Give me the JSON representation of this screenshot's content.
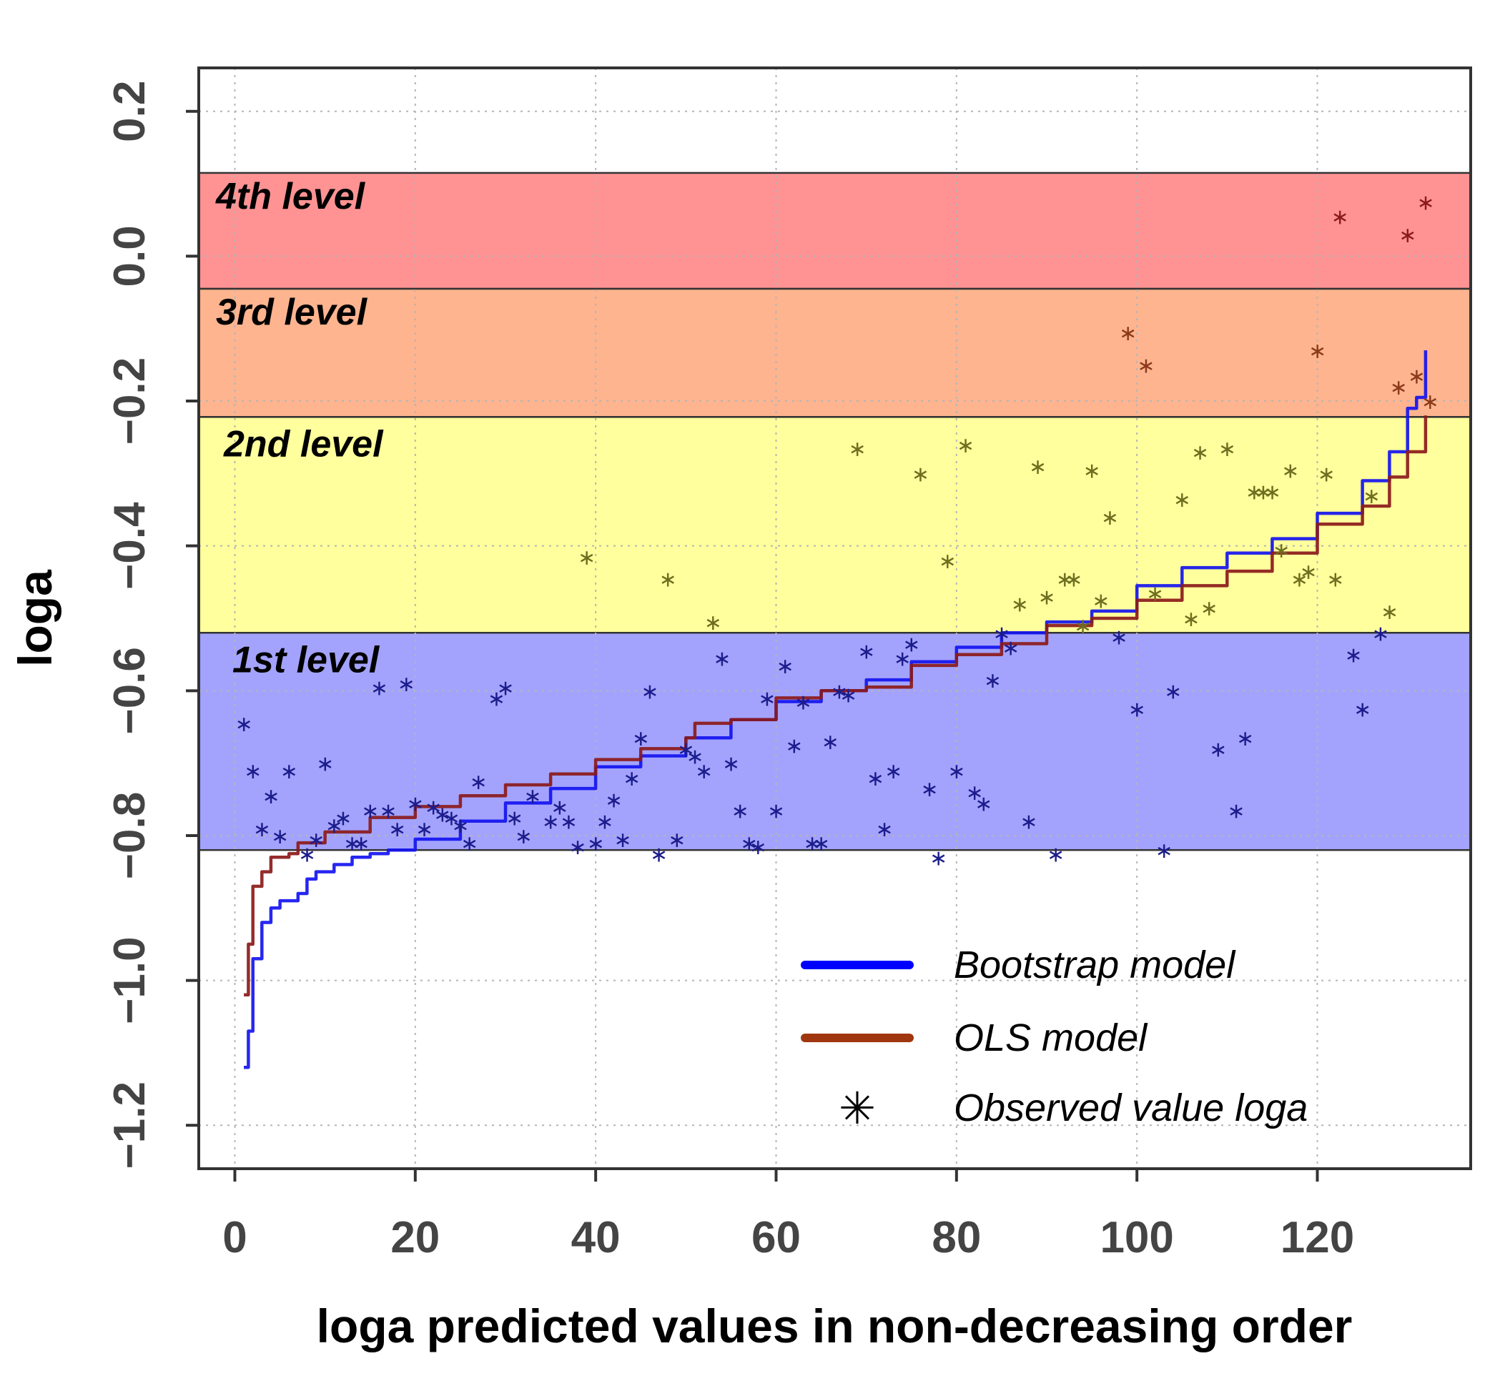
{
  "chart_data": {
    "type": "line",
    "xlabel": "loga predicted values in non-decreasing order",
    "ylabel": "loga",
    "xlim": [
      -4,
      137
    ],
    "ylim": [
      -1.26,
      0.26
    ],
    "xticks": [
      0,
      20,
      40,
      60,
      80,
      100,
      120
    ],
    "yticks": [
      -1.2,
      -1.0,
      -0.8,
      -0.6,
      -0.4,
      -0.2,
      0.0,
      0.2
    ],
    "xtick_labels": [
      "0",
      "20",
      "40",
      "60",
      "80",
      "100",
      "120"
    ],
    "ytick_labels": [
      "−1.2",
      "−1.0",
      "−0.8",
      "−0.6",
      "−0.4",
      "−0.2",
      "0.0",
      "0.2"
    ],
    "grid": true,
    "bands": [
      {
        "label": "4th level",
        "from": -0.045,
        "to": 0.115,
        "color": "#ff9393"
      },
      {
        "label": "3rd level",
        "from": -0.222,
        "to": -0.045,
        "color": "#fdb48f"
      },
      {
        "label": "2nd level",
        "from": -0.52,
        "to": -0.222,
        "color": "#ffff9d"
      },
      {
        "label": "1st level",
        "from": -0.82,
        "to": -0.52,
        "color": "#a3a3fd"
      }
    ],
    "legend": {
      "position": "bottom-right",
      "entries": [
        {
          "label": "Bootstrap model",
          "kind": "line",
          "color": "#0000ff"
        },
        {
          "label": "OLS model",
          "kind": "line",
          "color": "#a0360f"
        },
        {
          "label": "Observed value loga",
          "kind": "star",
          "symbol": "✳"
        }
      ]
    },
    "series": [
      {
        "name": "Bootstrap model",
        "color": "#1414f0",
        "points": [
          [
            1,
            -1.12
          ],
          [
            1.5,
            -1.07
          ],
          [
            2,
            -0.97
          ],
          [
            3,
            -0.92
          ],
          [
            4,
            -0.9
          ],
          [
            5,
            -0.89
          ],
          [
            7,
            -0.88
          ],
          [
            8,
            -0.86
          ],
          [
            9,
            -0.85
          ],
          [
            11,
            -0.84
          ],
          [
            13,
            -0.83
          ],
          [
            15,
            -0.825
          ],
          [
            17,
            -0.82
          ],
          [
            20,
            -0.805
          ],
          [
            25,
            -0.78
          ],
          [
            30,
            -0.755
          ],
          [
            35,
            -0.735
          ],
          [
            40,
            -0.705
          ],
          [
            45,
            -0.69
          ],
          [
            50,
            -0.665
          ],
          [
            55,
            -0.64
          ],
          [
            60,
            -0.615
          ],
          [
            65,
            -0.6
          ],
          [
            70,
            -0.585
          ],
          [
            75,
            -0.56
          ],
          [
            80,
            -0.54
          ],
          [
            85,
            -0.52
          ],
          [
            90,
            -0.505
          ],
          [
            95,
            -0.49
          ],
          [
            100,
            -0.455
          ],
          [
            105,
            -0.43
          ],
          [
            110,
            -0.41
          ],
          [
            115,
            -0.39
          ],
          [
            120,
            -0.355
          ],
          [
            125,
            -0.31
          ],
          [
            128,
            -0.27
          ],
          [
            130,
            -0.21
          ],
          [
            131,
            -0.195
          ],
          [
            132,
            -0.13
          ]
        ]
      },
      {
        "name": "OLS model",
        "color": "#8b1a1a",
        "points": [
          [
            1,
            -1.02
          ],
          [
            1.5,
            -0.95
          ],
          [
            2,
            -0.87
          ],
          [
            3,
            -0.85
          ],
          [
            4,
            -0.83
          ],
          [
            6,
            -0.825
          ],
          [
            7,
            -0.81
          ],
          [
            10,
            -0.795
          ],
          [
            15,
            -0.775
          ],
          [
            20,
            -0.76
          ],
          [
            25,
            -0.745
          ],
          [
            30,
            -0.73
          ],
          [
            35,
            -0.715
          ],
          [
            40,
            -0.695
          ],
          [
            45,
            -0.68
          ],
          [
            50,
            -0.665
          ],
          [
            51,
            -0.645
          ],
          [
            55,
            -0.64
          ],
          [
            60,
            -0.61
          ],
          [
            65,
            -0.6
          ],
          [
            70,
            -0.595
          ],
          [
            75,
            -0.565
          ],
          [
            80,
            -0.55
          ],
          [
            85,
            -0.535
          ],
          [
            90,
            -0.51
          ],
          [
            95,
            -0.5
          ],
          [
            100,
            -0.475
          ],
          [
            105,
            -0.455
          ],
          [
            110,
            -0.435
          ],
          [
            115,
            -0.41
          ],
          [
            120,
            -0.37
          ],
          [
            125,
            -0.345
          ],
          [
            128,
            -0.305
          ],
          [
            130,
            -0.27
          ],
          [
            132,
            -0.22
          ]
        ]
      }
    ],
    "observed": [
      [
        1,
        -0.645
      ],
      [
        2,
        -0.71
      ],
      [
        3,
        -0.79
      ],
      [
        4,
        -0.745
      ],
      [
        5,
        -0.8
      ],
      [
        6,
        -0.71
      ],
      [
        8,
        -0.825
      ],
      [
        9,
        -0.805
      ],
      [
        10,
        -0.7
      ],
      [
        11,
        -0.785
      ],
      [
        12,
        -0.775
      ],
      [
        13,
        -0.81
      ],
      [
        14,
        -0.81
      ],
      [
        15,
        -0.765
      ],
      [
        16,
        -0.595
      ],
      [
        17,
        -0.765
      ],
      [
        18,
        -0.79
      ],
      [
        19,
        -0.59
      ],
      [
        20,
        -0.755
      ],
      [
        21,
        -0.79
      ],
      [
        22,
        -0.76
      ],
      [
        23,
        -0.77
      ],
      [
        24,
        -0.775
      ],
      [
        25,
        -0.785
      ],
      [
        26,
        -0.81
      ],
      [
        27,
        -0.725
      ],
      [
        29,
        -0.61
      ],
      [
        30,
        -0.595
      ],
      [
        31,
        -0.775
      ],
      [
        32,
        -0.8
      ],
      [
        33,
        -0.745
      ],
      [
        35,
        -0.78
      ],
      [
        36,
        -0.76
      ],
      [
        37,
        -0.78
      ],
      [
        38,
        -0.815
      ],
      [
        39,
        -0.415
      ],
      [
        40,
        -0.81
      ],
      [
        41,
        -0.78
      ],
      [
        42,
        -0.75
      ],
      [
        43,
        -0.805
      ],
      [
        44,
        -0.72
      ],
      [
        45,
        -0.665
      ],
      [
        46,
        -0.6
      ],
      [
        47,
        -0.825
      ],
      [
        48,
        -0.445
      ],
      [
        49,
        -0.805
      ],
      [
        50,
        -0.68
      ],
      [
        51,
        -0.69
      ],
      [
        52,
        -0.71
      ],
      [
        53,
        -0.505
      ],
      [
        54,
        -0.555
      ],
      [
        55,
        -0.7
      ],
      [
        56,
        -0.765
      ],
      [
        57,
        -0.81
      ],
      [
        58,
        -0.815
      ],
      [
        59,
        -0.61
      ],
      [
        60,
        -0.765
      ],
      [
        61,
        -0.565
      ],
      [
        62,
        -0.675
      ],
      [
        63,
        -0.615
      ],
      [
        64,
        -0.81
      ],
      [
        65,
        -0.81
      ],
      [
        66,
        -0.67
      ],
      [
        67,
        -0.6
      ],
      [
        68,
        -0.605
      ],
      [
        69,
        -0.265
      ],
      [
        70,
        -0.545
      ],
      [
        71,
        -0.72
      ],
      [
        72,
        -0.79
      ],
      [
        73,
        -0.71
      ],
      [
        74,
        -0.555
      ],
      [
        75,
        -0.535
      ],
      [
        76,
        -0.3
      ],
      [
        77,
        -0.735
      ],
      [
        78,
        -0.83
      ],
      [
        79,
        -0.42
      ],
      [
        80,
        -0.71
      ],
      [
        81,
        -0.26
      ],
      [
        82,
        -0.74
      ],
      [
        83,
        -0.755
      ],
      [
        84,
        -0.585
      ],
      [
        85,
        -0.52
      ],
      [
        86,
        -0.54
      ],
      [
        87,
        -0.48
      ],
      [
        88,
        -0.78
      ],
      [
        89,
        -0.29
      ],
      [
        90,
        -0.47
      ],
      [
        91,
        -0.825
      ],
      [
        92,
        -0.445
      ],
      [
        93,
        -0.445
      ],
      [
        94,
        -0.51
      ],
      [
        95,
        -0.295
      ],
      [
        96,
        -0.475
      ],
      [
        97,
        -0.36
      ],
      [
        98,
        -0.525
      ],
      [
        99,
        -0.105
      ],
      [
        100,
        -0.625
      ],
      [
        101,
        -0.15
      ],
      [
        102,
        -0.465
      ],
      [
        103,
        -0.82
      ],
      [
        104,
        -0.6
      ],
      [
        105,
        -0.335
      ],
      [
        106,
        -0.5
      ],
      [
        107,
        -0.27
      ],
      [
        108,
        -0.485
      ],
      [
        109,
        -0.68
      ],
      [
        110,
        -0.265
      ],
      [
        111,
        -0.765
      ],
      [
        112,
        -0.665
      ],
      [
        113,
        -0.325
      ],
      [
        114,
        -0.325
      ],
      [
        115,
        -0.325
      ],
      [
        116,
        -0.405
      ],
      [
        117,
        -0.295
      ],
      [
        118,
        -0.445
      ],
      [
        119,
        -0.435
      ],
      [
        120,
        -0.13
      ],
      [
        121,
        -0.3
      ],
      [
        122,
        -0.445
      ],
      [
        122.5,
        0.055
      ],
      [
        124,
        -0.55
      ],
      [
        125,
        -0.625
      ],
      [
        126,
        -0.33
      ],
      [
        127,
        -0.52
      ],
      [
        128,
        -0.49
      ],
      [
        129,
        -0.18
      ],
      [
        130,
        0.03
      ],
      [
        131,
        -0.165
      ],
      [
        132,
        0.075
      ],
      [
        132.5,
        -0.2
      ]
    ]
  }
}
